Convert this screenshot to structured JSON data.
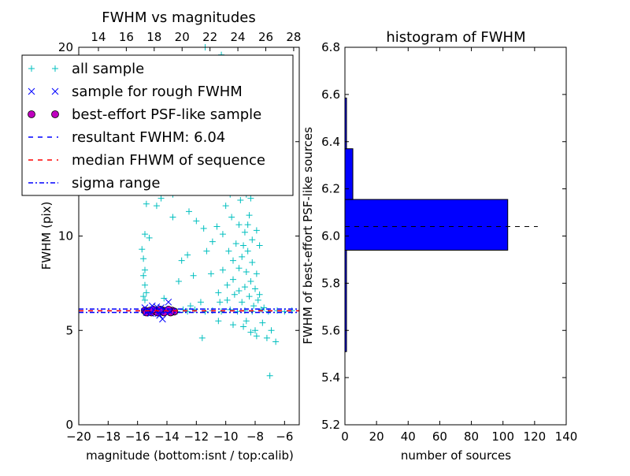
{
  "chart_data": [
    {
      "type": "scatter",
      "title": "FWHM vs magnitudes",
      "xlabel": "magnitude (bottom:isnt / top:calib)",
      "ylabel": "FWHM (pix)",
      "xlim": [
        -20,
        -5
      ],
      "ylim": [
        0,
        20
      ],
      "x_ticks": [
        -20,
        -18,
        -16,
        -14,
        -12,
        -10,
        -8,
        -6
      ],
      "x_tick_labels": [
        "−20",
        "−18",
        "−16",
        "−14",
        "−12",
        "−10",
        "−8",
        "−6"
      ],
      "y_ticks": [
        0,
        5,
        10,
        15,
        20
      ],
      "y_tick_labels": [
        "0",
        "5",
        "10",
        "15",
        "20"
      ],
      "top_xlim": [
        12.59,
        28.4
      ],
      "top_ticks": [
        14,
        16,
        18,
        20,
        22,
        24,
        26,
        28
      ],
      "top_tick_labels": [
        "14",
        "16",
        "18",
        "20",
        "22",
        "24",
        "26",
        "28"
      ],
      "grid": false,
      "legend_position": "top-left",
      "legend": [
        {
          "label": "all sample",
          "marker": "plus",
          "color": "#00bfbf"
        },
        {
          "label": "sample for rough FWHM",
          "marker": "x",
          "color": "#0000ff"
        },
        {
          "label": "best-effort PSF-like sample",
          "marker": "circle",
          "color": "#bf00bf"
        },
        {
          "label": "resultant FWHM: 6.04",
          "marker": "dashed-line",
          "color": "#0000ff"
        },
        {
          "label": "median FHWM of sequence",
          "marker": "dashed-line",
          "color": "#ff0000"
        },
        {
          "label": "sigma range",
          "marker": "dashdot-line",
          "color": "#0000ff"
        }
      ],
      "series": [
        {
          "name": "all sample",
          "marker": "plus",
          "color": "#00bfbf",
          "points": [
            [
              -15.6,
              8.8
            ],
            [
              -15.5,
              8.2
            ],
            [
              -15.6,
              7.9
            ],
            [
              -15.5,
              7.4
            ],
            [
              -15.4,
              7.0
            ],
            [
              -15.6,
              6.8
            ],
            [
              -15.5,
              6.6
            ],
            [
              -15.7,
              9.3
            ],
            [
              -15.3,
              14.0
            ],
            [
              -15.0,
              13.5
            ],
            [
              -14.8,
              12.7
            ],
            [
              -14.0,
              12.7
            ],
            [
              -13.6,
              12.2
            ],
            [
              -13.0,
              12.3
            ],
            [
              -12.4,
              12.6
            ],
            [
              -11.5,
              12.8
            ],
            [
              -10.9,
              12.4
            ],
            [
              -10.4,
              12.9
            ],
            [
              -10.0,
              13.0
            ],
            [
              -9.5,
              12.7
            ],
            [
              -9.0,
              12.4
            ],
            [
              -8.6,
              12.2
            ],
            [
              -8.1,
              12.5
            ],
            [
              -15.4,
              11.7
            ],
            [
              -14.7,
              11.6
            ],
            [
              -12.5,
              11.3
            ],
            [
              -12.0,
              10.8
            ],
            [
              -11.5,
              10.4
            ],
            [
              -12.6,
              9.0
            ],
            [
              -13.0,
              8.7
            ],
            [
              -12.2,
              7.9
            ],
            [
              -13.2,
              7.6
            ],
            [
              -11.0,
              8.0
            ],
            [
              -10.5,
              7.0
            ],
            [
              -11.7,
              6.5
            ],
            [
              -12.4,
              6.3
            ],
            [
              -14.2,
              6.7
            ],
            [
              -15.2,
              9.9
            ],
            [
              -15.5,
              10.1
            ],
            [
              -13.6,
              11.0
            ],
            [
              -14.4,
              12.0
            ],
            [
              -10.0,
              11.6
            ],
            [
              -9.6,
              11.0
            ],
            [
              -9.1,
              10.6
            ],
            [
              -8.7,
              10.2
            ],
            [
              -8.2,
              9.8
            ],
            [
              -7.9,
              10.3
            ],
            [
              -8.4,
              11.1
            ],
            [
              -9.8,
              9.2
            ],
            [
              -9.5,
              8.7
            ],
            [
              -9.1,
              8.3
            ],
            [
              -8.9,
              8.9
            ],
            [
              -8.5,
              9.2
            ],
            [
              -8.2,
              8.6
            ],
            [
              -7.9,
              8.0
            ],
            [
              -8.3,
              7.6
            ],
            [
              -8.7,
              7.3
            ],
            [
              -9.1,
              7.1
            ],
            [
              -9.5,
              7.7
            ],
            [
              -9.9,
              7.4
            ],
            [
              -10.2,
              8.2
            ],
            [
              -9.3,
              9.6
            ],
            [
              -8.8,
              9.5
            ],
            [
              -8.6,
              8.1
            ],
            [
              -8.0,
              7.2
            ],
            [
              -7.7,
              6.9
            ],
            [
              -8.4,
              6.8
            ],
            [
              -8.9,
              6.5
            ],
            [
              -9.4,
              6.9
            ],
            [
              -9.9,
              6.6
            ],
            [
              -10.4,
              6.5
            ],
            [
              -8.1,
              6.3
            ],
            [
              -7.8,
              6.6
            ],
            [
              -8.5,
              10.6
            ],
            [
              -9.0,
              11.9
            ],
            [
              -9.7,
              12.2
            ],
            [
              -8.3,
              12.0
            ],
            [
              -7.7,
              9.5
            ],
            [
              -10.6,
              10.5
            ],
            [
              -10.9,
              9.7
            ],
            [
              -11.3,
              9.2
            ],
            [
              -10.2,
              10.1
            ],
            [
              -8.6,
              5.5
            ],
            [
              -8.0,
              5.0
            ],
            [
              -7.5,
              5.4
            ],
            [
              -7.2,
              4.6
            ],
            [
              -6.6,
              4.4
            ],
            [
              -7.9,
              4.7
            ],
            [
              -8.8,
              5.2
            ],
            [
              -9.5,
              5.3
            ],
            [
              -11.6,
              4.6
            ],
            [
              -10.5,
              5.5
            ],
            [
              -8.3,
              4.9
            ],
            [
              -7.0,
              2.6
            ],
            [
              -6.9,
              5.0
            ],
            [
              -7.4,
              6.2
            ],
            [
              -12.6,
              6.0
            ],
            [
              -12.1,
              6.1
            ],
            [
              -11.4,
              6.0
            ],
            [
              -10.9,
              6.05
            ],
            [
              -10.3,
              6.0
            ],
            [
              -9.7,
              6.1
            ],
            [
              -9.2,
              6.0
            ],
            [
              -8.7,
              6.05
            ],
            [
              -8.2,
              6.0
            ],
            [
              -7.6,
              6.1
            ],
            [
              -7.1,
              6.0
            ],
            [
              -6.5,
              6.05
            ],
            [
              -6.0,
              6.0
            ],
            [
              -5.5,
              6.05
            ],
            [
              -13.3,
              6.0
            ],
            [
              -12.9,
              6.1
            ],
            [
              -14.3,
              6.0
            ],
            [
              -13.8,
              6.05
            ],
            [
              -10.3,
              19.6
            ],
            [
              -10.5,
              18.3
            ],
            [
              -10.8,
              17.2
            ],
            [
              -9.6,
              16.9
            ],
            [
              -11.3,
              16.4
            ],
            [
              -11.7,
              17.2
            ],
            [
              -12.3,
              16.8
            ],
            [
              -9.3,
              15.8
            ],
            [
              -8.8,
              15.3
            ],
            [
              -10.9,
              15.1
            ],
            [
              -13.3,
              14.9
            ],
            [
              -11.8,
              14.8
            ],
            [
              -12.1,
              14.2
            ],
            [
              -10.6,
              14.4
            ],
            [
              -11.1,
              13.9
            ],
            [
              -9.9,
              14.1
            ],
            [
              -12.9,
              13.7
            ],
            [
              -11.4,
              20.0
            ],
            [
              -13.8,
              14.4
            ],
            [
              -13.7,
              13.7
            ],
            [
              -15.2,
              12.9
            ],
            [
              -14.9,
              14.4
            ],
            [
              -13.4,
              13.1
            ]
          ]
        },
        {
          "name": "sample for rough FWHM",
          "marker": "x",
          "color": "#0000ff",
          "points": [
            [
              -15.5,
              6.2
            ],
            [
              -15.3,
              6.0
            ],
            [
              -15.1,
              5.9
            ],
            [
              -14.9,
              6.1
            ],
            [
              -14.6,
              5.9
            ],
            [
              -14.4,
              6.2
            ],
            [
              -14.3,
              5.6
            ],
            [
              -14.1,
              6.0
            ],
            [
              -13.9,
              6.5
            ],
            [
              -15.0,
              6.3
            ],
            [
              -14.7,
              6.25
            ],
            [
              -14.5,
              5.8
            ],
            [
              -14.2,
              6.1
            ],
            [
              -15.4,
              5.95
            ],
            [
              -13.8,
              6.0
            ]
          ]
        },
        {
          "name": "best-effort PSF-like sample",
          "marker": "circle",
          "color": "#bf00bf",
          "points": [
            [
              -15.5,
              6.05
            ],
            [
              -15.3,
              6.0
            ],
            [
              -15.15,
              6.05
            ],
            [
              -15.0,
              6.0
            ],
            [
              -14.85,
              6.05
            ],
            [
              -14.7,
              6.0
            ],
            [
              -14.55,
              6.05
            ],
            [
              -14.4,
              6.0
            ],
            [
              -14.25,
              6.05
            ],
            [
              -14.1,
              6.0
            ],
            [
              -13.95,
              6.05
            ],
            [
              -13.8,
              6.0
            ],
            [
              -13.65,
              6.05
            ],
            [
              -13.5,
              6.0
            ],
            [
              -15.4,
              5.95
            ],
            [
              -15.05,
              5.95
            ],
            [
              -14.65,
              5.95
            ],
            [
              -14.2,
              5.95
            ],
            [
              -13.75,
              5.95
            ],
            [
              -14.95,
              6.1
            ],
            [
              -14.45,
              6.1
            ],
            [
              -13.9,
              6.1
            ]
          ]
        }
      ],
      "hlines": [
        {
          "name": "resultant FWHM: 6.04",
          "y": 6.04,
          "color": "#0000ff",
          "style": "dashed"
        },
        {
          "name": "median FHWM of sequence",
          "y": 6.04,
          "color": "#ff0000",
          "style": "dashed"
        },
        {
          "name": "sigma range",
          "y": 6.13,
          "color": "#0000ff",
          "style": "dashdot"
        },
        {
          "name": "sigma range",
          "y": 5.95,
          "color": "#0000ff",
          "style": "dashdot"
        }
      ]
    },
    {
      "type": "bar",
      "orientation": "horizontal",
      "title": "histogram of FWHM",
      "xlabel": "number of sources",
      "ylabel": "FWHM of best-effort PSF-like sources",
      "xlim": [
        0,
        140
      ],
      "ylim": [
        5.2,
        6.8
      ],
      "x_ticks": [
        0,
        20,
        40,
        60,
        80,
        100,
        120,
        140
      ],
      "x_tick_labels": [
        "0",
        "20",
        "40",
        "60",
        "80",
        "100",
        "120",
        "140"
      ],
      "y_ticks": [
        5.2,
        5.4,
        5.6,
        5.8,
        6.0,
        6.2,
        6.4,
        6.6,
        6.8
      ],
      "y_tick_labels": [
        "5.2",
        "5.4",
        "5.6",
        "5.8",
        "6.0",
        "6.2",
        "6.4",
        "6.6",
        "6.8"
      ],
      "grid": false,
      "color": "#0000ff",
      "bins": [
        {
          "low": 5.51,
          "high": 5.94,
          "count": 1
        },
        {
          "low": 5.94,
          "high": 6.155,
          "count": 103
        },
        {
          "low": 6.155,
          "high": 6.37,
          "count": 5
        },
        {
          "low": 6.37,
          "high": 6.585,
          "count": 1
        }
      ],
      "reference_line": {
        "y": 6.04,
        "x_range": [
          0,
          122
        ],
        "color": "#000000",
        "style": "dashed"
      }
    }
  ]
}
